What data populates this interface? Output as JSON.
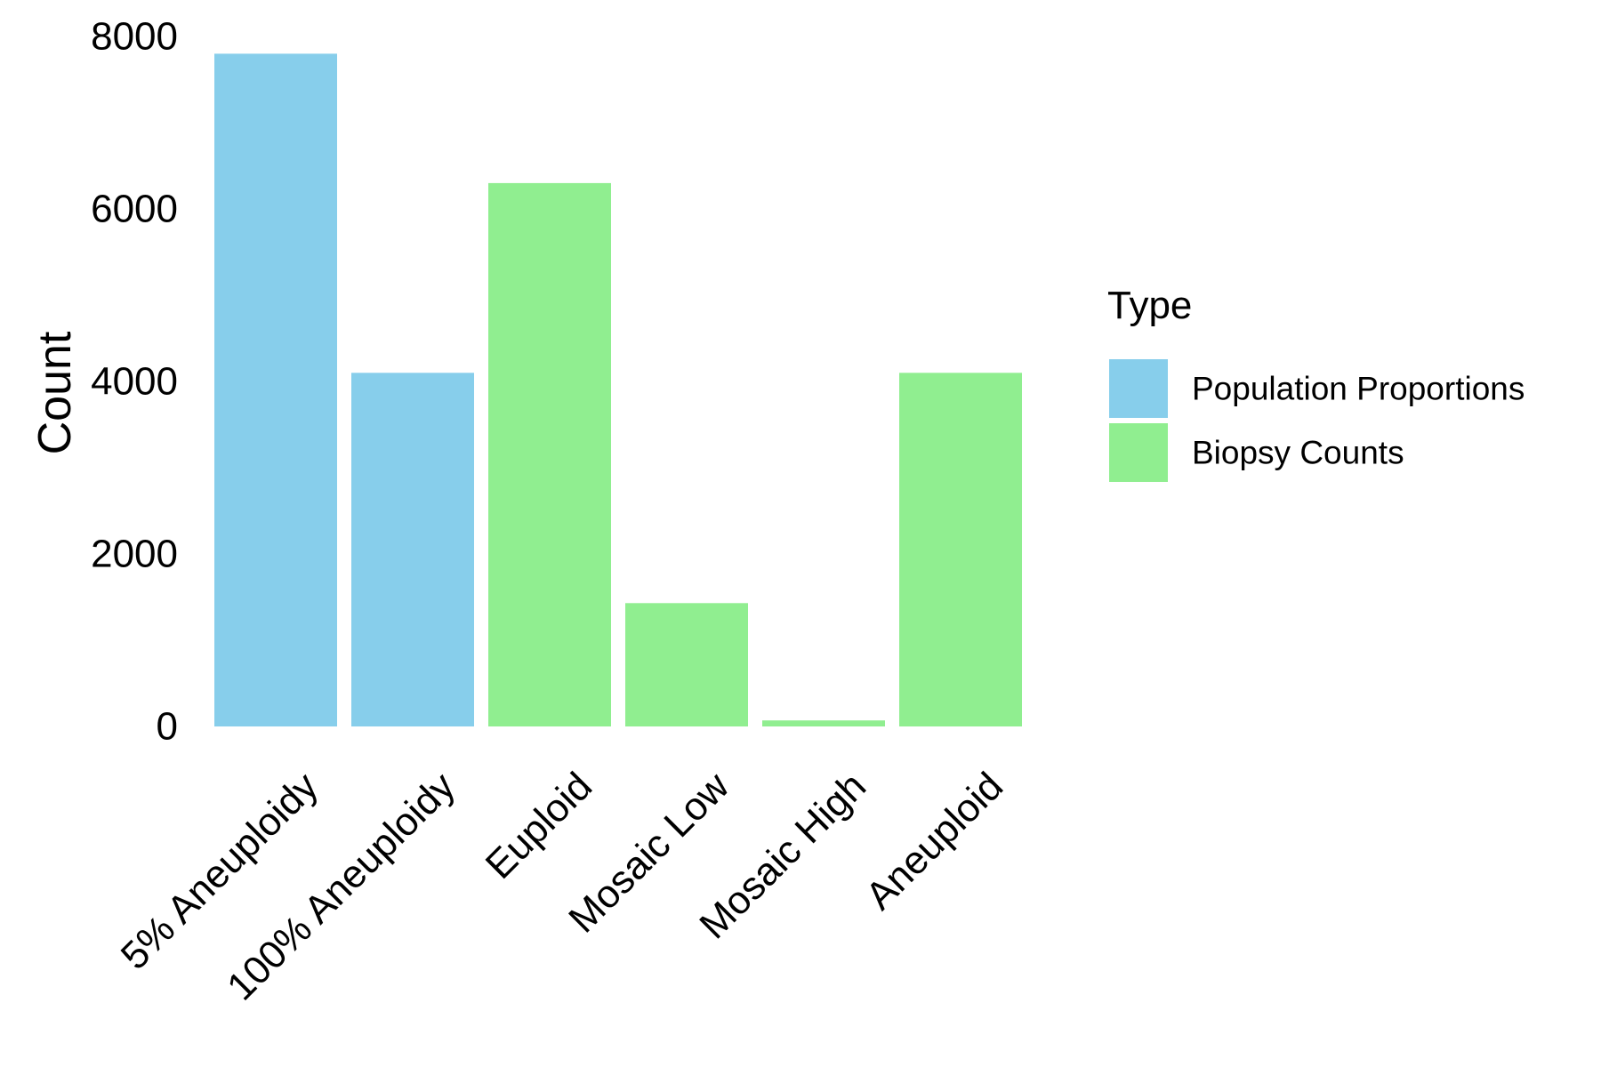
{
  "chart_data": {
    "type": "bar",
    "title": "",
    "xlabel": "",
    "ylabel": "Count",
    "ylim": [
      0,
      8000
    ],
    "yticks": [
      0,
      2000,
      4000,
      6000,
      8000
    ],
    "ytick_labels": [
      "0",
      "2000",
      "4000",
      "6000",
      "8000"
    ],
    "grid": false,
    "legend_position": "right",
    "legend": {
      "title": "Type",
      "entries": [
        {
          "label": "Population Proportions",
          "color": "#87CEEB"
        },
        {
          "label": "Biopsy Counts",
          "color": "#90EE90"
        }
      ]
    },
    "categories": [
      "5% Aneuploidy",
      "100% Aneuploidy",
      "Euploid",
      "Mosaic Low",
      "Mosaic High",
      "Aneuploid"
    ],
    "values": [
      7800,
      4100,
      6300,
      1430,
      70,
      4100
    ],
    "types": [
      "Population Proportions",
      "Population Proportions",
      "Biopsy Counts",
      "Biopsy Counts",
      "Biopsy Counts",
      "Biopsy Counts"
    ],
    "colors": {
      "Population Proportions": "#87CEEB",
      "Biopsy Counts": "#90EE90"
    }
  }
}
